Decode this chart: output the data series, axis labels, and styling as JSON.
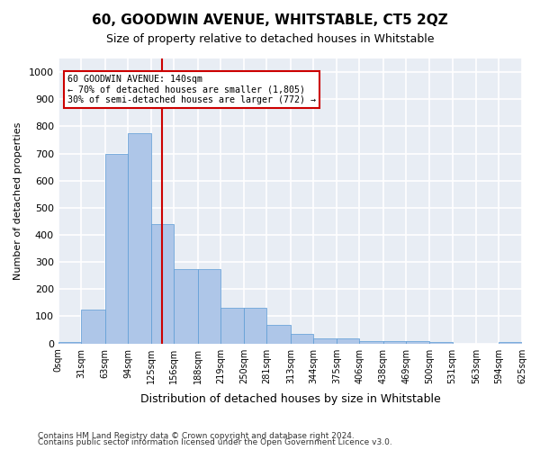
{
  "title": "60, GOODWIN AVENUE, WHITSTABLE, CT5 2QZ",
  "subtitle": "Size of property relative to detached houses in Whitstable",
  "xlabel": "Distribution of detached houses by size in Whitstable",
  "ylabel": "Number of detached properties",
  "bar_color": "#aec6e8",
  "bar_edge_color": "#5b9bd5",
  "background_color": "#e8edf4",
  "grid_color": "#ffffff",
  "red_line_x": 140,
  "red_line_color": "#cc0000",
  "annotation_text": "60 GOODWIN AVENUE: 140sqm\n← 70% of detached houses are smaller (1,805)\n30% of semi-detached houses are larger (772) →",
  "annotation_box_color": "#ffffff",
  "annotation_box_edge": "#cc0000",
  "footnote1": "Contains HM Land Registry data © Crown copyright and database right 2024.",
  "footnote2": "Contains public sector information licensed under the Open Government Licence v3.0.",
  "bin_edges": [
    0,
    31,
    63,
    94,
    125,
    156,
    188,
    219,
    250,
    281,
    313,
    344,
    375,
    406,
    438,
    469,
    500,
    531,
    563,
    594,
    625
  ],
  "bin_labels": [
    "0sqm",
    "31sqm",
    "63sqm",
    "94sqm",
    "125sqm",
    "156sqm",
    "188sqm",
    "219sqm",
    "250sqm",
    "281sqm",
    "313sqm",
    "344sqm",
    "375sqm",
    "406sqm",
    "438sqm",
    "469sqm",
    "500sqm",
    "531sqm",
    "563sqm",
    "594sqm",
    "625sqm"
  ],
  "counts": [
    5,
    125,
    700,
    775,
    440,
    275,
    275,
    130,
    130,
    70,
    35,
    20,
    20,
    10,
    10,
    10,
    5,
    0,
    0,
    5
  ],
  "ylim": [
    0,
    1050
  ],
  "yticks": [
    0,
    100,
    200,
    300,
    400,
    500,
    600,
    700,
    800,
    900,
    1000
  ]
}
